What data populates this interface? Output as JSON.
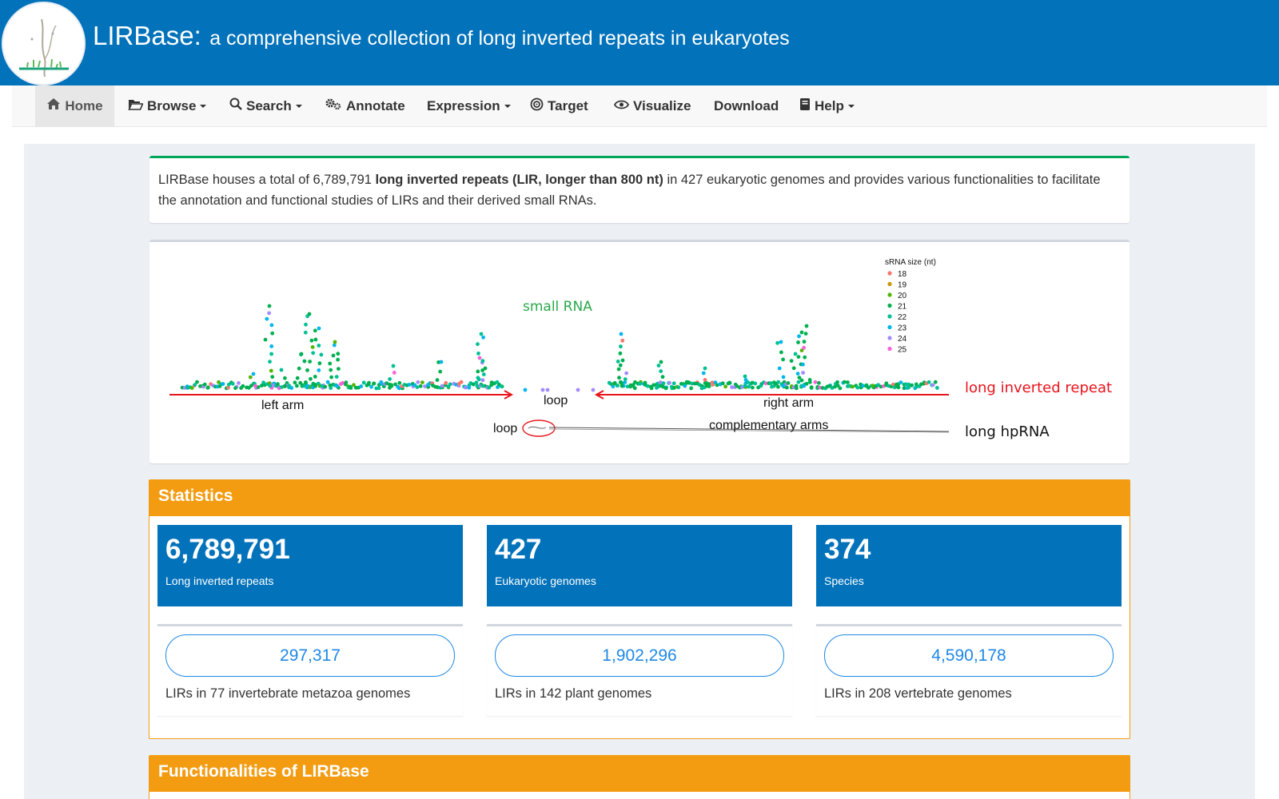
{
  "header": {
    "brand": "LIRBase:",
    "tagline": "a comprehensive collection of long inverted repeats in eukaryotes"
  },
  "nav": {
    "home": "Home",
    "browse": "Browse",
    "search": "Search",
    "annotate": "Annotate",
    "expression": "Expression",
    "target": "Target",
    "visualize": "Visualize",
    "download": "Download",
    "help": "Help"
  },
  "intro": {
    "prefix": "LIRBase houses a total of 6,789,791",
    "bold": "long inverted repeats (LIR, longer than 800 nt)",
    "suffix": "in 427 eukaryotic genomes and provides various functionalities to facilitate the annotation and functional studies of LIRs and their derived small RNAs."
  },
  "figure": {
    "legend_title": "sRNA size (nt)",
    "legend": [
      {
        "label": "18",
        "color": "#f8766d"
      },
      {
        "label": "19",
        "color": "#c49a00"
      },
      {
        "label": "20",
        "color": "#53b400"
      },
      {
        "label": "21",
        "color": "#00b050"
      },
      {
        "label": "22",
        "color": "#00c094"
      },
      {
        "label": "23",
        "color": "#00b6eb"
      },
      {
        "label": "24",
        "color": "#a58aff"
      },
      {
        "label": "25",
        "color": "#fb61d7"
      }
    ],
    "small_rna": "small RNA",
    "left_arm": "left arm",
    "loop_top": "loop",
    "right_arm": "right arm",
    "lir_label": "long inverted repeat",
    "loop_bottom": "loop",
    "complementary": "complementary arms",
    "hprna": "long hpRNA"
  },
  "statistics": {
    "title": "Statistics",
    "cards": [
      {
        "value": "6,789,791",
        "label": "Long inverted repeats"
      },
      {
        "value": "427",
        "label": "Eukaryotic genomes"
      },
      {
        "value": "374",
        "label": "Species"
      }
    ],
    "sub": [
      {
        "value": "297,317",
        "desc": "LIRs in 77 invertebrate metazoa genomes"
      },
      {
        "value": "1,902,296",
        "desc": "LIRs in 142 plant genomes"
      },
      {
        "value": "4,590,178",
        "desc": "LIRs in 208 vertebrate genomes"
      }
    ]
  },
  "functionalities": {
    "title": "Functionalities of LIRBase"
  },
  "colors": {
    "header": "#0272ba",
    "accent": "#f39c12",
    "success": "#00a65a",
    "lir_red": "#e8141c",
    "pill_blue": "#1e88e5"
  }
}
